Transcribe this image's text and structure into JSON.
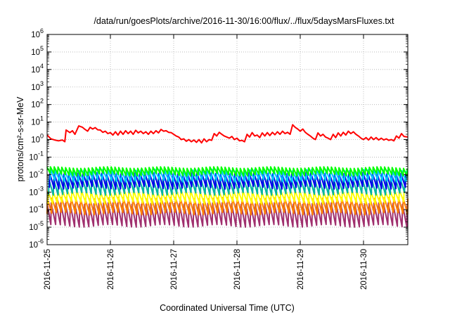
{
  "chart_data": {
    "type": "line",
    "title": "/data/run/goesPlots/archive/2016-11-30/16:00/flux/../flux/5daysMarsFluxes.txt",
    "xlabel": "Coordinated Universal Time (UTC)",
    "ylabel": "protons/cm²-s-sr-MeV",
    "yscale": "log",
    "ylim_exponent": [
      -6,
      6
    ],
    "ylim": [
      1e-06,
      1000000
    ],
    "xlim_days": [
      0,
      5.7
    ],
    "x_tick_labels": [
      "2016-11-25",
      "2016-11-26",
      "2016-11-27",
      "2016-11-28",
      "2016-11-29",
      "2016-11-30"
    ],
    "x_tick_days": [
      0,
      1,
      2,
      3,
      4,
      5
    ],
    "y_tick_exponents": [
      -6,
      -5,
      -4,
      -3,
      -2,
      -1,
      0,
      1,
      2,
      3,
      4,
      5,
      6
    ],
    "grid": true,
    "legend": "none",
    "series": [
      {
        "color": "#ff0000",
        "points": [
          [
            0.0,
            1.8
          ],
          [
            0.06,
            1.1
          ],
          [
            0.12,
            0.95
          ],
          [
            0.18,
            0.85
          ],
          [
            0.24,
            0.95
          ],
          [
            0.28,
            0.75
          ],
          [
            0.3,
            3.5
          ],
          [
            0.36,
            2.5
          ],
          [
            0.4,
            3.2
          ],
          [
            0.44,
            2.0
          ],
          [
            0.5,
            6.0
          ],
          [
            0.56,
            5.0
          ],
          [
            0.6,
            3.8
          ],
          [
            0.64,
            3.0
          ],
          [
            0.68,
            5.0
          ],
          [
            0.72,
            4.0
          ],
          [
            0.76,
            4.8
          ],
          [
            0.8,
            3.6
          ],
          [
            0.84,
            3.5
          ],
          [
            0.88,
            2.6
          ],
          [
            0.92,
            3.0
          ],
          [
            0.96,
            2.2
          ],
          [
            1.0,
            2.5
          ],
          [
            1.04,
            1.8
          ],
          [
            1.08,
            2.8
          ],
          [
            1.12,
            1.8
          ],
          [
            1.16,
            3.0
          ],
          [
            1.2,
            2.0
          ],
          [
            1.24,
            3.2
          ],
          [
            1.28,
            2.2
          ],
          [
            1.32,
            3.0
          ],
          [
            1.36,
            2.0
          ],
          [
            1.4,
            3.4
          ],
          [
            1.44,
            2.4
          ],
          [
            1.48,
            3.0
          ],
          [
            1.52,
            2.2
          ],
          [
            1.56,
            2.8
          ],
          [
            1.6,
            2.0
          ],
          [
            1.64,
            3.0
          ],
          [
            1.68,
            2.2
          ],
          [
            1.72,
            3.2
          ],
          [
            1.76,
            2.4
          ],
          [
            1.8,
            3.8
          ],
          [
            1.84,
            3.0
          ],
          [
            1.88,
            3.2
          ],
          [
            1.92,
            2.6
          ],
          [
            1.96,
            2.5
          ],
          [
            2.0,
            2.0
          ],
          [
            2.04,
            1.6
          ],
          [
            2.08,
            1.4
          ],
          [
            2.12,
            1.0
          ],
          [
            2.16,
            1.1
          ],
          [
            2.2,
            0.8
          ],
          [
            2.24,
            1.0
          ],
          [
            2.28,
            0.75
          ],
          [
            2.32,
            0.95
          ],
          [
            2.36,
            0.7
          ],
          [
            2.4,
            1.0
          ],
          [
            2.44,
            0.65
          ],
          [
            2.48,
            1.1
          ],
          [
            2.52,
            0.75
          ],
          [
            2.56,
            1.0
          ],
          [
            2.6,
            0.9
          ],
          [
            2.64,
            2.2
          ],
          [
            2.68,
            1.6
          ],
          [
            2.72,
            2.6
          ],
          [
            2.76,
            2.0
          ],
          [
            2.8,
            1.6
          ],
          [
            2.84,
            1.4
          ],
          [
            2.88,
            1.2
          ],
          [
            2.92,
            1.5
          ],
          [
            2.96,
            1.0
          ],
          [
            3.0,
            1.2
          ],
          [
            3.04,
            0.85
          ],
          [
            3.08,
            0.9
          ],
          [
            3.12,
            0.75
          ],
          [
            3.16,
            2.0
          ],
          [
            3.2,
            1.4
          ],
          [
            3.24,
            2.5
          ],
          [
            3.28,
            1.6
          ],
          [
            3.32,
            1.8
          ],
          [
            3.36,
            1.3
          ],
          [
            3.4,
            2.4
          ],
          [
            3.44,
            1.6
          ],
          [
            3.48,
            2.5
          ],
          [
            3.52,
            1.7
          ],
          [
            3.56,
            2.6
          ],
          [
            3.6,
            1.9
          ],
          [
            3.64,
            2.8
          ],
          [
            3.68,
            2.0
          ],
          [
            3.72,
            3.0
          ],
          [
            3.76,
            2.2
          ],
          [
            3.8,
            2.6
          ],
          [
            3.84,
            2.0
          ],
          [
            3.88,
            7.0
          ],
          [
            3.92,
            5.0
          ],
          [
            3.96,
            4.0
          ],
          [
            4.0,
            3.0
          ],
          [
            4.04,
            4.0
          ],
          [
            4.08,
            2.6
          ],
          [
            4.12,
            2.0
          ],
          [
            4.16,
            1.6
          ],
          [
            4.2,
            1.2
          ],
          [
            4.24,
            1.0
          ],
          [
            4.28,
            2.4
          ],
          [
            4.32,
            1.6
          ],
          [
            4.36,
            2.0
          ],
          [
            4.4,
            1.4
          ],
          [
            4.44,
            1.2
          ],
          [
            4.48,
            1.0
          ],
          [
            4.52,
            2.0
          ],
          [
            4.56,
            1.3
          ],
          [
            4.6,
            2.4
          ],
          [
            4.64,
            1.6
          ],
          [
            4.68,
            2.6
          ],
          [
            4.72,
            1.8
          ],
          [
            4.76,
            3.0
          ],
          [
            4.8,
            2.2
          ],
          [
            4.84,
            2.8
          ],
          [
            4.88,
            2.0
          ],
          [
            4.92,
            1.6
          ],
          [
            4.96,
            1.2
          ],
          [
            5.0,
            1.0
          ],
          [
            5.04,
            1.3
          ],
          [
            5.08,
            0.95
          ],
          [
            5.12,
            1.4
          ],
          [
            5.16,
            1.0
          ],
          [
            5.2,
            1.3
          ],
          [
            5.24,
            0.95
          ],
          [
            5.28,
            1.2
          ],
          [
            5.32,
            0.95
          ],
          [
            5.36,
            1.1
          ],
          [
            5.4,
            0.9
          ],
          [
            5.44,
            1.0
          ],
          [
            5.48,
            0.85
          ],
          [
            5.52,
            1.6
          ],
          [
            5.56,
            1.2
          ],
          [
            5.6,
            2.2
          ],
          [
            5.64,
            1.5
          ],
          [
            5.7,
            1.4
          ]
        ]
      },
      {
        "color": "#00ff00",
        "peak": 0.025,
        "trough": 0.01,
        "period": 0.06
      },
      {
        "color": "#00c8ff",
        "peak": 0.018,
        "trough": 0.0045,
        "period": 0.075
      },
      {
        "color": "#0000ee",
        "peak": 0.012,
        "trough": 0.0018,
        "period": 0.075
      },
      {
        "color": "#00b4a0",
        "peak": 0.006,
        "trough": 0.0008,
        "period": 0.075
      },
      {
        "color": "#ffff00",
        "peak": 0.0012,
        "trough": 0.00025,
        "period": 0.075
      },
      {
        "color": "#ff8000",
        "peak": 0.00045,
        "trough": 6e-05,
        "period": 0.075
      },
      {
        "color": "#a0306e",
        "peak": 0.00022,
        "trough": 1.2e-05,
        "period": 0.075
      }
    ]
  }
}
